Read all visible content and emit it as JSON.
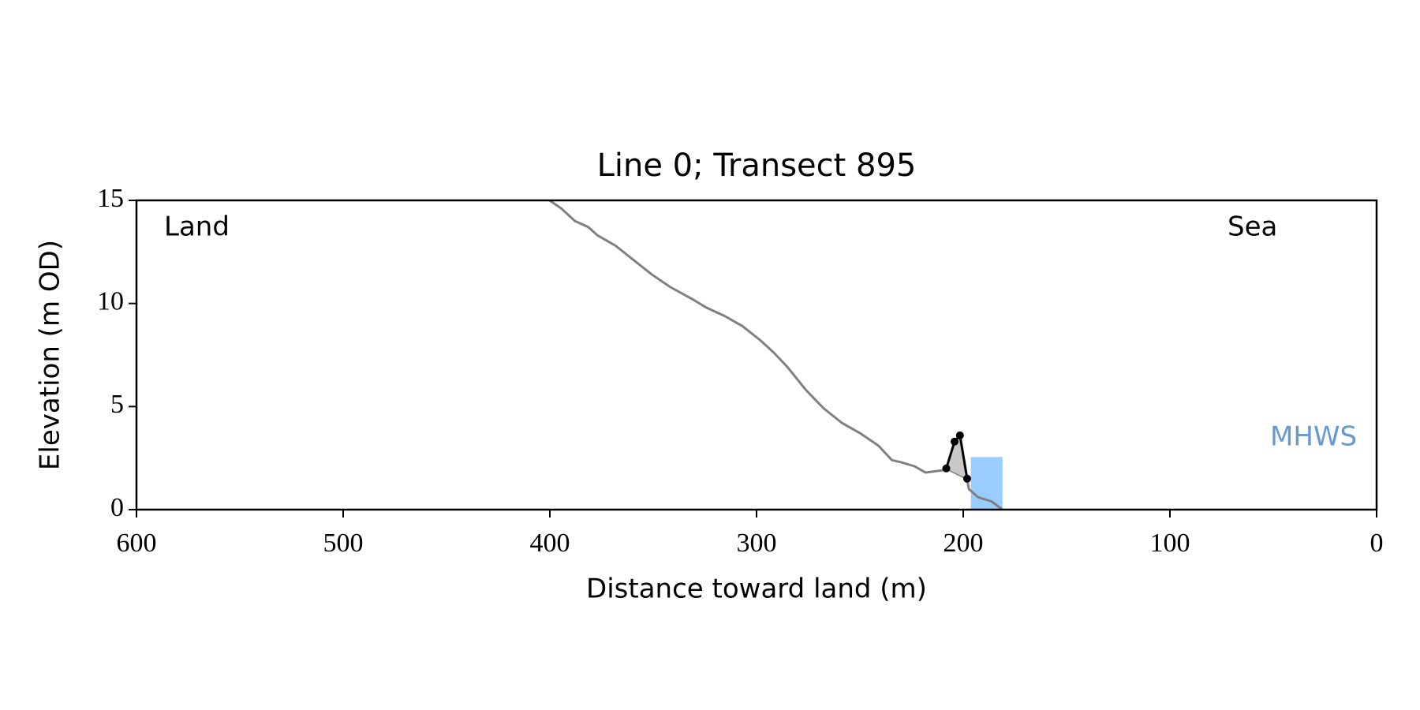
{
  "chart_data": {
    "type": "line",
    "title": "Line 0; Transect 895",
    "x_label": "Distance toward land (m)",
    "y_label": "Elevation (m OD)",
    "xlim": [
      600,
      0
    ],
    "ylim": [
      0,
      15
    ],
    "xticks": [
      600,
      500,
      400,
      300,
      200,
      100,
      0
    ],
    "yticks": [
      0,
      5,
      10,
      15
    ],
    "annotations": {
      "land": "Land",
      "sea": "Sea"
    },
    "water": {
      "label": "MHWS",
      "level": 2.55,
      "x": [
        196.3,
        181.0
      ],
      "color": "#99ccff",
      "label_color": "#6699cc"
    },
    "series": [
      {
        "color": "#808080",
        "markers": false,
        "x": [
          400.1,
          394.4,
          387.9,
          381.3,
          376.9,
          368.2,
          359.4,
          350.6,
          341.8,
          330.9,
          324.3,
          315.6,
          306.8,
          298.0,
          291.5,
          284.9,
          276.1,
          267.4,
          258.6,
          249.8,
          241.0,
          234.5,
          230.1,
          223.5,
          218.3,
          210.4,
          208.2,
          198.1,
          197.3,
          192.8,
          186.3,
          181.0
        ],
        "values": [
          15.0,
          14.6,
          14.0,
          13.7,
          13.3,
          12.8,
          12.1,
          11.4,
          10.8,
          10.2,
          9.8,
          9.4,
          8.9,
          8.2,
          7.6,
          6.9,
          5.8,
          4.9,
          4.2,
          3.7,
          3.1,
          2.4,
          2.3,
          2.1,
          1.8,
          1.9,
          2.0,
          1.5,
          1.0,
          0.6,
          0.4,
          0.0
        ]
      },
      {
        "color": "#000000",
        "markers": true,
        "fill": "#c8c8c8",
        "x": [
          208.2,
          204.2,
          201.6,
          198.1
        ],
        "values": [
          2.0,
          3.3,
          3.6,
          1.5
        ]
      }
    ]
  }
}
